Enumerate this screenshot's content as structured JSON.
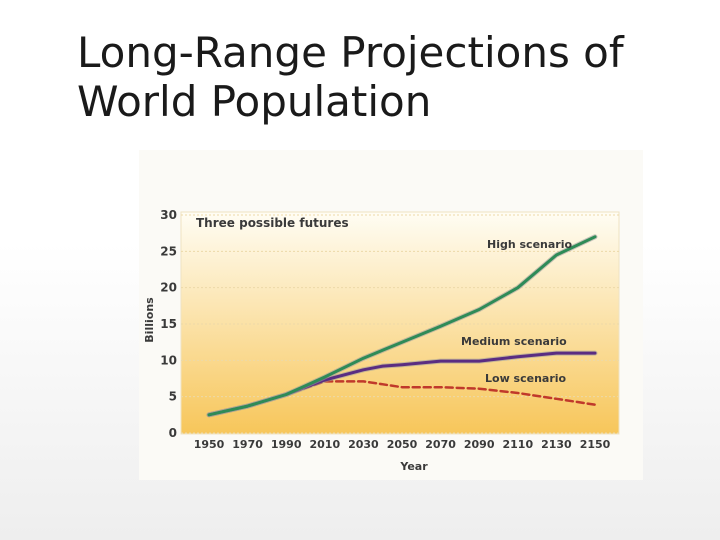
{
  "slide": {
    "title_line1": "Long-Range Projections of",
    "title_line2": "World Population"
  },
  "chart_data": {
    "type": "line",
    "title": "Three possible futures",
    "xlabel": "Year",
    "ylabel": "Billions",
    "x_ticks": [
      1950,
      1970,
      1990,
      2010,
      2030,
      2050,
      2070,
      2090,
      2110,
      2130,
      2150
    ],
    "y_ticks": [
      0,
      5,
      10,
      15,
      20,
      25,
      30
    ],
    "xlim": [
      1950,
      2150
    ],
    "ylim": [
      0,
      30
    ],
    "series": [
      {
        "name": "High scenario",
        "color": "#2e8b57",
        "style": "solid",
        "x": [
          1950,
          1970,
          1990,
          2010,
          2030,
          2050,
          2070,
          2090,
          2110,
          2130,
          2150
        ],
        "y": [
          2.5,
          3.7,
          5.3,
          7.7,
          10.3,
          12.5,
          14.7,
          17.0,
          20.0,
          24.5,
          27.0
        ]
      },
      {
        "name": "Medium scenario",
        "color": "#5a2d82",
        "style": "solid",
        "x": [
          1950,
          1970,
          1990,
          2010,
          2030,
          2040,
          2050,
          2070,
          2090,
          2110,
          2130,
          2150
        ],
        "y": [
          2.5,
          3.7,
          5.3,
          7.3,
          8.7,
          9.2,
          9.4,
          9.9,
          9.9,
          10.5,
          11.0,
          11.0
        ]
      },
      {
        "name": "Low scenario",
        "color": "#c0392b",
        "style": "dashed",
        "x": [
          1950,
          1970,
          1990,
          2010,
          2030,
          2050,
          2070,
          2090,
          2110,
          2130,
          2150
        ],
        "y": [
          2.5,
          3.7,
          5.3,
          7.1,
          7.1,
          6.3,
          6.3,
          6.1,
          5.5,
          4.7,
          3.9
        ]
      }
    ]
  }
}
